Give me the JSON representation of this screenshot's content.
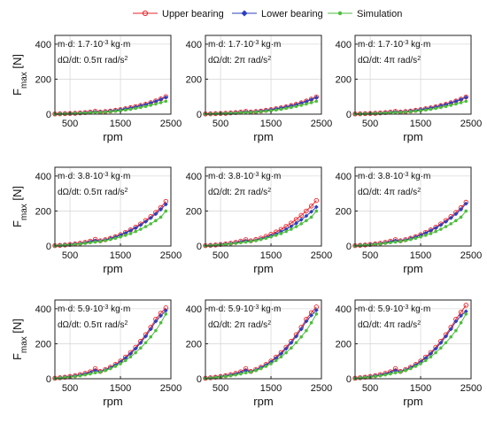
{
  "legend": [
    "Upper bearing",
    "Lower bearing",
    "Simulation"
  ],
  "colors": {
    "upper": "#e8262a",
    "lower": "#2b3fbf",
    "sim": "#4cbe3c"
  },
  "xlabel": "rpm",
  "ylabel_main": "F",
  "ylabel_sub": "max",
  "ylabel_unit": " [N]",
  "chart_data": {
    "type": "line",
    "layout": "3x3 grid",
    "xlim": [
      200,
      2500
    ],
    "ylim": [
      0,
      450
    ],
    "xticks": [
      500,
      1500,
      2500
    ],
    "yticks": [
      0,
      200,
      400
    ],
    "grid": true,
    "legend_position": "top",
    "x": [
      200,
      300,
      400,
      500,
      600,
      700,
      800,
      900,
      1000,
      1100,
      1200,
      1300,
      1400,
      1500,
      1600,
      1700,
      1800,
      1900,
      2000,
      2100,
      2200,
      2300,
      2400
    ],
    "panels": [
      {
        "md": "m·d: 1.7·10",
        "md_exp": "-3",
        "md_unit": " kg·m",
        "rate": "dΩ/dt: 0.5π rad/s",
        "rate_exp": "2",
        "series": [
          {
            "name": "Upper bearing",
            "values": [
              1,
              2,
              3,
              4,
              5,
              7,
              9,
              12,
              17,
              12,
              15,
              18,
              22,
              26,
              31,
              37,
              43,
              50,
              57,
              66,
              76,
              87,
              100
            ]
          },
          {
            "name": "Lower bearing",
            "values": [
              1,
              2,
              3,
              4,
              5,
              6,
              8,
              10,
              13,
              12,
              14,
              17,
              21,
              25,
              30,
              35,
              41,
              48,
              55,
              64,
              73,
              84,
              96
            ]
          },
          {
            "name": "Simulation",
            "values": [
              1,
              1,
              2,
              3,
              4,
              5,
              6,
              8,
              10,
              10,
              12,
              14,
              17,
              20,
              24,
              28,
              33,
              38,
              44,
              51,
              58,
              66,
              74
            ]
          }
        ]
      },
      {
        "md": "m·d: 1.7·10",
        "md_exp": "-3",
        "md_unit": " kg·m",
        "rate": "dΩ/dt: 2π rad/s",
        "rate_exp": "2",
        "series": [
          {
            "name": "Upper bearing",
            "values": [
              1,
              2,
              3,
              4,
              5,
              7,
              9,
              12,
              16,
              12,
              15,
              18,
              22,
              26,
              31,
              36,
              42,
              49,
              56,
              65,
              75,
              86,
              98
            ]
          },
          {
            "name": "Lower bearing",
            "values": [
              1,
              2,
              3,
              4,
              5,
              6,
              8,
              10,
              13,
              12,
              14,
              17,
              21,
              25,
              30,
              35,
              41,
              47,
              54,
              63,
              72,
              83,
              95
            ]
          },
          {
            "name": "Simulation",
            "values": [
              1,
              1,
              2,
              3,
              4,
              5,
              6,
              8,
              10,
              10,
              12,
              14,
              17,
              20,
              24,
              28,
              33,
              38,
              44,
              51,
              58,
              66,
              74
            ]
          }
        ]
      },
      {
        "md": "m·d: 1.7·10",
        "md_exp": "-3",
        "md_unit": " kg·m",
        "rate": "dΩ/dt: 4π rad/s",
        "rate_exp": "2",
        "series": [
          {
            "name": "Upper bearing",
            "values": [
              1,
              2,
              3,
              4,
              5,
              7,
              9,
              12,
              16,
              12,
              15,
              18,
              22,
              26,
              31,
              36,
              42,
              49,
              56,
              65,
              75,
              86,
              98
            ]
          },
          {
            "name": "Lower bearing",
            "values": [
              1,
              2,
              3,
              4,
              5,
              6,
              8,
              10,
              13,
              12,
              14,
              17,
              21,
              25,
              30,
              35,
              41,
              48,
              55,
              64,
              73,
              84,
              96
            ]
          },
          {
            "name": "Simulation",
            "values": [
              1,
              1,
              2,
              3,
              4,
              5,
              6,
              8,
              10,
              10,
              12,
              14,
              17,
              20,
              24,
              28,
              33,
              38,
              44,
              51,
              58,
              66,
              74
            ]
          }
        ]
      },
      {
        "md": "m·d: 3.8·10",
        "md_exp": "-3",
        "md_unit": " kg·m",
        "rate": "dΩ/dt: 0.5π rad/s",
        "rate_exp": "2",
        "series": [
          {
            "name": "Upper bearing",
            "values": [
              2,
              4,
              6,
              9,
              12,
              16,
              21,
              28,
              38,
              30,
              36,
              44,
              54,
              65,
              78,
              92,
              108,
              126,
              146,
              168,
              192,
              220,
              255
            ]
          },
          {
            "name": "Lower bearing",
            "values": [
              2,
              4,
              6,
              8,
              11,
              14,
              18,
              24,
              31,
              28,
              34,
              42,
              51,
              62,
              74,
              88,
              103,
              120,
              139,
              160,
              183,
              209,
              238
            ]
          },
          {
            "name": "Simulation",
            "values": [
              1,
              3,
              5,
              7,
              9,
              12,
              15,
              19,
              23,
              26,
              31,
              37,
              44,
              52,
              61,
              71,
              83,
              96,
              111,
              127,
              145,
              165,
              200
            ]
          }
        ]
      },
      {
        "md": "m·d: 3.8·10",
        "md_exp": "-3",
        "md_unit": " kg·m",
        "rate": "dΩ/dt: 2π rad/s",
        "rate_exp": "2",
        "series": [
          {
            "name": "Upper bearing",
            "values": [
              2,
              4,
              6,
              9,
              12,
              16,
              21,
              28,
              36,
              30,
              37,
              45,
              55,
              67,
              80,
              95,
              112,
              131,
              152,
              175,
              200,
              228,
              260
            ]
          },
          {
            "name": "Lower bearing",
            "values": [
              2,
              4,
              6,
              8,
              11,
              14,
              18,
              23,
              29,
              27,
              33,
              40,
              48,
              58,
              69,
              82,
              96,
              112,
              130,
              150,
              172,
              196,
              223
            ]
          },
          {
            "name": "Simulation",
            "values": [
              1,
              3,
              5,
              7,
              9,
              12,
              15,
              19,
              23,
              26,
              31,
              37,
              44,
              52,
              61,
              71,
              83,
              96,
              111,
              127,
              145,
              165,
              200
            ]
          }
        ]
      },
      {
        "md": "m·d: 3.8·10",
        "md_exp": "-3",
        "md_unit": " kg·m",
        "rate": "dΩ/dt: 4π rad/s",
        "rate_exp": "2",
        "series": [
          {
            "name": "Upper bearing",
            "values": [
              2,
              4,
              6,
              9,
              12,
              16,
              21,
              28,
              36,
              30,
              36,
              44,
              54,
              65,
              78,
              92,
              108,
              126,
              146,
              168,
              192,
              219,
              250
            ]
          },
          {
            "name": "Lower bearing",
            "values": [
              2,
              4,
              6,
              8,
              11,
              14,
              18,
              24,
              31,
              28,
              34,
              42,
              51,
              62,
              74,
              88,
              103,
              120,
              139,
              160,
              183,
              209,
              242
            ]
          },
          {
            "name": "Simulation",
            "values": [
              1,
              3,
              5,
              7,
              9,
              12,
              15,
              19,
              23,
              26,
              31,
              37,
              44,
              52,
              61,
              71,
              83,
              96,
              111,
              127,
              145,
              165,
              200
            ]
          }
        ]
      },
      {
        "md": "m·d: 5.9·10",
        "md_exp": "-3",
        "md_unit": " kg·m",
        "rate": "dΩ/dt: 0.5π rad/s",
        "rate_exp": "2",
        "series": [
          {
            "name": "Upper bearing",
            "values": [
              3,
              6,
              9,
              13,
              18,
              24,
              31,
              40,
              58,
              42,
              53,
              66,
              82,
              101,
              124,
              150,
              180,
              214,
              252,
              294,
              340,
              375,
              405
            ]
          },
          {
            "name": "Lower bearing",
            "values": [
              3,
              5,
              8,
              12,
              16,
              21,
              27,
              35,
              47,
              40,
              50,
              63,
              78,
              96,
              118,
              143,
              172,
              205,
              242,
              283,
              328,
              360,
              390
            ]
          },
          {
            "name": "Simulation",
            "values": [
              2,
              4,
              7,
              10,
              13,
              17,
              22,
              28,
              34,
              38,
              47,
              58,
              71,
              86,
              104,
              125,
              149,
              176,
              206,
              239,
              275,
              320,
              370
            ]
          }
        ]
      },
      {
        "md": "m·d: 5.9·10",
        "md_exp": "-3",
        "md_unit": " kg·m",
        "rate": "dΩ/dt: 2π rad/s",
        "rate_exp": "2",
        "series": [
          {
            "name": "Upper bearing",
            "values": [
              3,
              6,
              9,
              13,
              18,
              24,
              31,
              40,
              58,
              42,
              53,
              66,
              82,
              101,
              124,
              150,
              180,
              214,
              252,
              294,
              340,
              378,
              410
            ]
          },
          {
            "name": "Lower bearing",
            "values": [
              3,
              5,
              8,
              12,
              16,
              21,
              27,
              35,
              47,
              40,
              50,
              63,
              78,
              96,
              118,
              143,
              172,
              205,
              242,
              283,
              328,
              362,
              392
            ]
          },
          {
            "name": "Simulation",
            "values": [
              2,
              4,
              7,
              10,
              13,
              17,
              22,
              28,
              34,
              38,
              47,
              58,
              71,
              86,
              104,
              125,
              149,
              176,
              206,
              239,
              275,
              320,
              370
            ]
          }
        ]
      },
      {
        "md": "m·d: 5.9·10",
        "md_exp": "-3",
        "md_unit": " kg·m",
        "rate": "dΩ/dt: 4π rad/s",
        "rate_exp": "2",
        "series": [
          {
            "name": "Upper bearing",
            "values": [
              3,
              6,
              9,
              13,
              18,
              24,
              31,
              40,
              58,
              42,
              53,
              66,
              82,
              101,
              124,
              150,
              180,
              214,
              252,
              294,
              340,
              380,
              420
            ]
          },
          {
            "name": "Lower bearing",
            "values": [
              3,
              5,
              8,
              12,
              16,
              21,
              27,
              35,
              47,
              40,
              50,
              63,
              78,
              96,
              118,
              143,
              172,
              205,
              242,
              283,
              328,
              360,
              385
            ]
          },
          {
            "name": "Simulation",
            "values": [
              2,
              4,
              7,
              10,
              13,
              17,
              22,
              28,
              34,
              38,
              47,
              58,
              71,
              86,
              104,
              125,
              149,
              176,
              206,
              239,
              275,
              320,
              370
            ]
          }
        ]
      }
    ]
  }
}
